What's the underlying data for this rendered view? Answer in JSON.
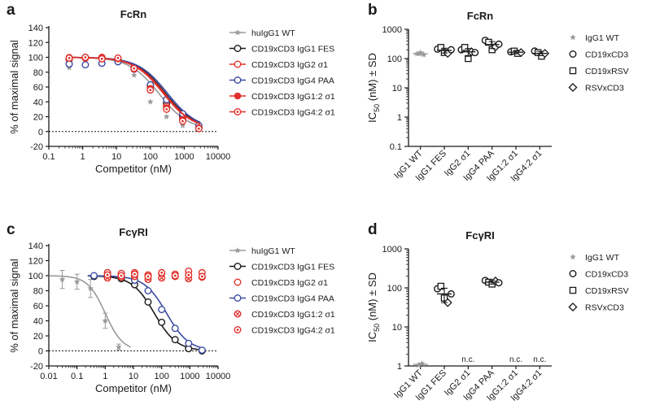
{
  "colors": {
    "wt": "#9a9a9a",
    "fes": "#1a1a1a",
    "igg2": "#e0302b",
    "igg4": "#3a4aa0",
    "igg12": "#e0302b",
    "igg42": "#e0302b"
  },
  "chart_data": [
    {
      "panel": "a",
      "type": "line",
      "title": "FcRn",
      "xlabel": "Competitor (nM)",
      "ylabel": "% of maximal signal",
      "xscale": "log",
      "xlim": [
        0.1,
        10000
      ],
      "ylim": [
        -20,
        140
      ],
      "xticks": [
        0.1,
        1,
        10,
        100,
        1000,
        10000
      ],
      "xtick_labels": [
        "0.1",
        "1",
        "10",
        "100",
        "1000",
        "10000"
      ],
      "yticks": [
        -20,
        0,
        20,
        40,
        60,
        80,
        100,
        120,
        140
      ],
      "ytick_labels": [
        "-20",
        "0",
        "20",
        "40",
        "60",
        "80",
        "100",
        "120",
        "140"
      ],
      "reference_line": 0,
      "legend_position": "right",
      "x": [
        0.4,
        1.2,
        3.7,
        11,
        33,
        100,
        300,
        900,
        2700
      ],
      "series": [
        {
          "name": "huIgG1 WT",
          "color_key": "wt",
          "marker": "star",
          "ec50": 180,
          "top": 100,
          "bottom": 2,
          "hill": 1.0,
          "values": [
            86,
            98,
            99,
            95,
            76,
            40,
            20,
            8,
            3
          ]
        },
        {
          "name": "CD19xCD3 IgG1 FES",
          "color_key": "fes",
          "marker": "circle-open",
          "ec50": 280,
          "top": 100,
          "bottom": 3,
          "hill": 1.0,
          "values": [
            98,
            100,
            99,
            97,
            86,
            62,
            38,
            20,
            6
          ]
        },
        {
          "name": "CD19xCD3 IgG2 σ1",
          "color_key": "igg2",
          "marker": "circle-open",
          "ec50": 260,
          "top": 100,
          "bottom": 3,
          "hill": 1.0,
          "values": [
            97,
            99,
            100,
            96,
            85,
            60,
            34,
            17,
            5
          ]
        },
        {
          "name": "CD19xCD3 IgG4 PAA",
          "color_key": "igg4",
          "marker": "circle-open",
          "ec50": 320,
          "top": 100,
          "bottom": 3,
          "hill": 1.0,
          "values": [
            91,
            90,
            92,
            94,
            84,
            63,
            43,
            24,
            8
          ]
        },
        {
          "name": "CD19xCD3 IgG1:2 σ1",
          "color_key": "igg12",
          "marker": "circle-filled",
          "ec50": 250,
          "top": 100,
          "bottom": 3,
          "hill": 1.0,
          "values": [
            100,
            99,
            99,
            98,
            84,
            58,
            32,
            16,
            5
          ]
        },
        {
          "name": "CD19xCD3 IgG4:2 σ1",
          "color_key": "igg42",
          "marker": "circle-dot",
          "ec50": 240,
          "top": 100,
          "bottom": 3,
          "hill": 1.0,
          "values": [
            99,
            100,
            98,
            99,
            85,
            56,
            30,
            14,
            4
          ]
        }
      ]
    },
    {
      "panel": "b",
      "type": "scatter",
      "title": "FcRn",
      "ylabel_main": "IC",
      "ylabel_sub": "50",
      "ylabel_rest": " (nM) ± SD",
      "yscale": "log",
      "ylim": [
        0.1,
        1000
      ],
      "yticks": [
        0.1,
        1,
        10,
        100,
        1000
      ],
      "ytick_labels": [
        "0.1",
        "1",
        "10",
        "100",
        "1000"
      ],
      "categories": [
        "IgG1 WT",
        "IgG1 FES",
        "IgG2 σ1",
        "IgG4 PAA",
        "IgG1:2 σ1",
        "IgG4:2 σ1"
      ],
      "legend": [
        {
          "label": "IgG1  WT",
          "marker": "star"
        },
        {
          "label": "CD19xCD3",
          "marker": "circle"
        },
        {
          "label": "CD19xRSV",
          "marker": "square"
        },
        {
          "label": "RSVxCD3",
          "marker": "diamond"
        }
      ],
      "points": [
        {
          "category": 0,
          "value": 145,
          "marker": "star"
        },
        {
          "category": 0,
          "value": 160,
          "marker": "star"
        },
        {
          "category": 0,
          "value": 135,
          "marker": "star"
        },
        {
          "category": 1,
          "value": 210,
          "marker": "circle"
        },
        {
          "category": 1,
          "value": 240,
          "marker": "square"
        },
        {
          "category": 1,
          "value": 160,
          "marker": "square"
        },
        {
          "category": 1,
          "value": 150,
          "marker": "diamond"
        },
        {
          "category": 1,
          "value": 200,
          "marker": "circle"
        },
        {
          "category": 2,
          "value": 200,
          "marker": "circle"
        },
        {
          "category": 2,
          "value": 240,
          "marker": "square"
        },
        {
          "category": 2,
          "value": 100,
          "marker": "square"
        },
        {
          "category": 2,
          "value": 170,
          "marker": "diamond"
        },
        {
          "category": 2,
          "value": 160,
          "marker": "circle"
        },
        {
          "category": 3,
          "value": 420,
          "marker": "circle"
        },
        {
          "category": 3,
          "value": 360,
          "marker": "square"
        },
        {
          "category": 3,
          "value": 200,
          "marker": "square"
        },
        {
          "category": 3,
          "value": 250,
          "marker": "diamond"
        },
        {
          "category": 3,
          "value": 310,
          "marker": "circle"
        },
        {
          "category": 4,
          "value": 170,
          "marker": "circle"
        },
        {
          "category": 4,
          "value": 180,
          "marker": "square"
        },
        {
          "category": 4,
          "value": 150,
          "marker": "square"
        },
        {
          "category": 4,
          "value": 160,
          "marker": "diamond"
        },
        {
          "category": 5,
          "value": 180,
          "marker": "circle"
        },
        {
          "category": 5,
          "value": 160,
          "marker": "square"
        },
        {
          "category": 5,
          "value": 120,
          "marker": "square"
        },
        {
          "category": 5,
          "value": 150,
          "marker": "diamond"
        }
      ],
      "means": [
        145,
        190,
        170,
        300,
        165,
        150
      ],
      "sds": [
        15,
        35,
        50,
        80,
        20,
        25
      ]
    },
    {
      "panel": "c",
      "type": "line",
      "title": "FcγRI",
      "xlabel": "Competitor (nM)",
      "ylabel": "% of maximal signal",
      "xscale": "log",
      "xlim": [
        0.01,
        10000
      ],
      "ylim": [
        -20,
        140
      ],
      "xticks": [
        0.01,
        0.1,
        1,
        10,
        100,
        1000,
        10000
      ],
      "xtick_labels": [
        "0.01",
        "0.1",
        "1",
        "10",
        "100",
        "1000",
        "10000"
      ],
      "yticks": [
        -20,
        0,
        20,
        40,
        60,
        80,
        100,
        120,
        140
      ],
      "ytick_labels": [
        "-20",
        "0",
        "20",
        "40",
        "60",
        "80",
        "100",
        "120",
        "140"
      ],
      "reference_line": 0,
      "legend_position": "right",
      "series": [
        {
          "name": "huIgG1 WT",
          "color_key": "wt",
          "marker": "star",
          "fit": true,
          "ec50": 1.0,
          "top": 100,
          "bottom": 0,
          "hill": 1.4,
          "x": [
            0.03,
            0.1,
            0.3,
            1,
            3
          ],
          "values": [
            95,
            92,
            83,
            40,
            5
          ],
          "errors": [
            12,
            10,
            12,
            10,
            4
          ]
        },
        {
          "name": "CD19xCD3 IgG1 FES",
          "color_key": "fes",
          "marker": "circle-open",
          "fit": true,
          "ec50": 55,
          "top": 100,
          "bottom": 0,
          "hill": 1.1,
          "x": [
            0.4,
            1.2,
            3.7,
            11,
            33,
            100,
            300,
            900,
            2700
          ],
          "values": [
            99,
            99,
            96,
            88,
            65,
            38,
            15,
            3,
            0
          ]
        },
        {
          "name": "CD19xCD3 IgG2 σ1",
          "color_key": "igg2",
          "marker": "circle-open",
          "fit": false,
          "x": [
            1.2,
            3.7,
            11,
            33,
            100,
            300,
            900,
            2700
          ],
          "values": [
            104,
            103,
            104,
            101,
            103,
            102,
            106,
            104
          ]
        },
        {
          "name": "CD19xCD3 IgG4 PAA",
          "color_key": "igg4",
          "marker": "circle-open",
          "fit": true,
          "ec50": 150,
          "top": 100,
          "bottom": 0,
          "hill": 1.1,
          "x": [
            0.4,
            1.2,
            3.7,
            11,
            33,
            100,
            300,
            900,
            2700
          ],
          "values": [
            100,
            99,
            98,
            94,
            80,
            55,
            30,
            10,
            1
          ]
        },
        {
          "name": "CD19xCD3 IgG1:2 σ1",
          "color_key": "igg12",
          "marker": "circle-cross",
          "fit": false,
          "x": [
            1.2,
            3.7,
            11,
            33,
            100,
            300,
            900,
            2700
          ],
          "values": [
            97,
            98,
            99,
            95,
            97,
            99,
            96,
            98
          ]
        },
        {
          "name": "CD19xCD3 IgG4:2 σ1",
          "color_key": "igg42",
          "marker": "circle-dot",
          "fit": false,
          "x": [
            1.2,
            3.7,
            11,
            33,
            100,
            300,
            900,
            2700
          ],
          "values": [
            101,
            100,
            102,
            99,
            104,
            100,
            101,
            99
          ]
        }
      ]
    },
    {
      "panel": "d",
      "type": "scatter",
      "title": "FcγRI",
      "ylabel_main": "IC",
      "ylabel_sub": "50",
      "ylabel_rest": " (nM) ± SD",
      "yscale": "log",
      "ylim": [
        1,
        1000
      ],
      "yticks": [
        1,
        10,
        100,
        1000
      ],
      "ytick_labels": [
        "1",
        "10",
        "100",
        "1000"
      ],
      "categories": [
        "IgG1 WT",
        "IgG1 FES",
        "IgG2 σ1",
        "IgG4 PAA",
        "IgG1:2 σ1",
        "IgG4:2 σ1"
      ],
      "not_calculated": [
        {
          "category": 2,
          "label": "n.c."
        },
        {
          "category": 4,
          "label": "n.c."
        },
        {
          "category": 5,
          "label": "n.c."
        }
      ],
      "legend": [
        {
          "label": "IgG1 WT",
          "marker": "star"
        },
        {
          "label": "CD19xCD3",
          "marker": "circle"
        },
        {
          "label": "CD19xRSV",
          "marker": "square"
        },
        {
          "label": "RSVxCD3",
          "marker": "diamond"
        }
      ],
      "points": [
        {
          "category": 0,
          "value": 1.05,
          "marker": "star"
        },
        {
          "category": 0,
          "value": 1.15,
          "marker": "star"
        },
        {
          "category": 1,
          "value": 95,
          "marker": "circle"
        },
        {
          "category": 1,
          "value": 110,
          "marker": "square"
        },
        {
          "category": 1,
          "value": 55,
          "marker": "square"
        },
        {
          "category": 1,
          "value": 42,
          "marker": "diamond"
        },
        {
          "category": 1,
          "value": 70,
          "marker": "circle"
        },
        {
          "category": 3,
          "value": 155,
          "marker": "circle"
        },
        {
          "category": 3,
          "value": 140,
          "marker": "square"
        },
        {
          "category": 3,
          "value": 125,
          "marker": "square"
        },
        {
          "category": 3,
          "value": 150,
          "marker": "diamond"
        },
        {
          "category": 3,
          "value": 135,
          "marker": "circle"
        }
      ],
      "means": [
        1.1,
        70,
        null,
        140,
        null,
        null
      ],
      "sds": [
        0.05,
        28,
        null,
        15,
        null,
        null
      ]
    }
  ]
}
